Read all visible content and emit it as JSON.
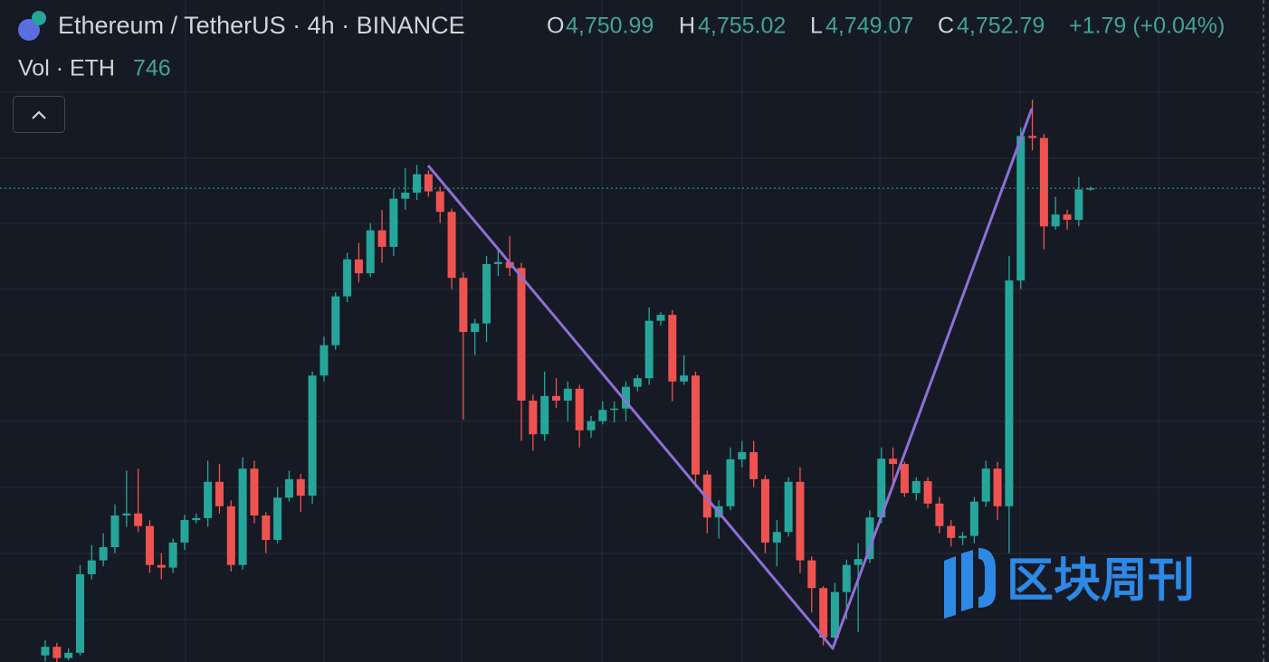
{
  "chart_data": {
    "type": "candlestick",
    "title": "Ethereum / TetherUS · 4h · BINANCE",
    "ohlc": [
      {
        "label": "O",
        "value": "4,750.99"
      },
      {
        "label": "H",
        "value": "4,755.02"
      },
      {
        "label": "L",
        "value": "4,749.07"
      },
      {
        "label": "C",
        "value": "4,752.79"
      }
    ],
    "change": "+1.79 (+0.04%)",
    "volume": {
      "label": "Vol · ETH",
      "value": "746"
    },
    "watermark": "区块周刊",
    "up_color": "#26a69a",
    "down_color": "#ef5350",
    "ylim": [
      4035,
      5038
    ],
    "open": [
      4045,
      4058,
      4041,
      4049,
      4168,
      4189,
      4209,
      4257,
      4260,
      4241,
      4182,
      4178,
      4216,
      4250,
      4253,
      4308,
      4271,
      4182,
      4328,
      4257,
      4220,
      4284,
      4312,
      4287,
      4469,
      4515,
      4589,
      4645,
      4624,
      4689,
      4664,
      4737,
      4746,
      4774,
      4748,
      4717,
      4617,
      4535,
      4548,
      4638,
      4641,
      4632,
      4431,
      4380,
      4438,
      4431,
      4449,
      4386,
      4400,
      4417,
      4419,
      4452,
      4465,
      4552,
      4561,
      4460,
      4469,
      4319,
      4254,
      4271,
      4342,
      4353,
      4312,
      4216,
      4232,
      4308,
      4189,
      4147,
      4072,
      4141,
      4182,
      4191,
      4254,
      4343,
      4335,
      4291,
      4309,
      4275,
      4241,
      4223,
      4226,
      4278,
      4328,
      4271,
      4613,
      4832,
      4829,
      4695,
      4713,
      4705,
      4750.99
    ],
    "high": [
      4068,
      4064,
      4056,
      4182,
      4212,
      4230,
      4274,
      4325,
      4328,
      4250,
      4200,
      4222,
      4258,
      4260,
      4340,
      4335,
      4280,
      4345,
      4340,
      4262,
      4300,
      4325,
      4320,
      4475,
      4528,
      4595,
      4655,
      4670,
      4700,
      4720,
      4752,
      4783,
      4788,
      4780,
      4755,
      4722,
      4625,
      4555,
      4650,
      4660,
      4680,
      4640,
      4440,
      4475,
      4465,
      4460,
      4455,
      4408,
      4430,
      4430,
      4460,
      4470,
      4572,
      4565,
      4568,
      4500,
      4475,
      4325,
      4280,
      4360,
      4370,
      4370,
      4318,
      4250,
      4315,
      4330,
      4195,
      4150,
      4155,
      4190,
      4215,
      4265,
      4360,
      4360,
      4338,
      4315,
      4315,
      4285,
      4250,
      4232,
      4285,
      4340,
      4338,
      4650,
      4845,
      4887,
      4835,
      4740,
      4720,
      4770,
      4755.02
    ],
    "low": [
      4036,
      4035,
      4038,
      4045,
      4160,
      4180,
      4200,
      4240,
      4232,
      4170,
      4160,
      4170,
      4205,
      4245,
      4240,
      4260,
      4172,
      4175,
      4245,
      4200,
      4215,
      4278,
      4262,
      4275,
      4460,
      4508,
      4580,
      4610,
      4618,
      4640,
      4650,
      4720,
      4735,
      4740,
      4700,
      4600,
      4402,
      4500,
      4520,
      4620,
      4620,
      4370,
      4355,
      4370,
      4420,
      4400,
      4360,
      4375,
      4395,
      4398,
      4400,
      4445,
      4455,
      4545,
      4430,
      4455,
      4300,
      4230,
      4222,
      4265,
      4330,
      4300,
      4200,
      4180,
      4225,
      4170,
      4110,
      4060,
      4070,
      4100,
      4080,
      4185,
      4245,
      4300,
      4285,
      4280,
      4268,
      4230,
      4210,
      4212,
      4215,
      4270,
      4250,
      4200,
      4600,
      4810,
      4660,
      4690,
      4690,
      4695,
      4749.07
    ],
    "close": [
      4058,
      4041,
      4049,
      4168,
      4189,
      4209,
      4257,
      4260,
      4241,
      4182,
      4178,
      4216,
      4250,
      4253,
      4308,
      4271,
      4182,
      4328,
      4257,
      4220,
      4284,
      4312,
      4287,
      4469,
      4515,
      4589,
      4645,
      4624,
      4689,
      4664,
      4737,
      4746,
      4774,
      4748,
      4717,
      4617,
      4535,
      4548,
      4638,
      4641,
      4632,
      4431,
      4380,
      4438,
      4431,
      4449,
      4386,
      4400,
      4417,
      4419,
      4452,
      4465,
      4552,
      4561,
      4460,
      4469,
      4319,
      4254,
      4271,
      4342,
      4353,
      4312,
      4216,
      4232,
      4308,
      4189,
      4147,
      4072,
      4141,
      4182,
      4191,
      4254,
      4343,
      4335,
      4291,
      4309,
      4275,
      4241,
      4223,
      4226,
      4278,
      4328,
      4271,
      4613,
      4832,
      4829,
      4695,
      4713,
      4705,
      4750.99,
      4752.79
    ]
  }
}
